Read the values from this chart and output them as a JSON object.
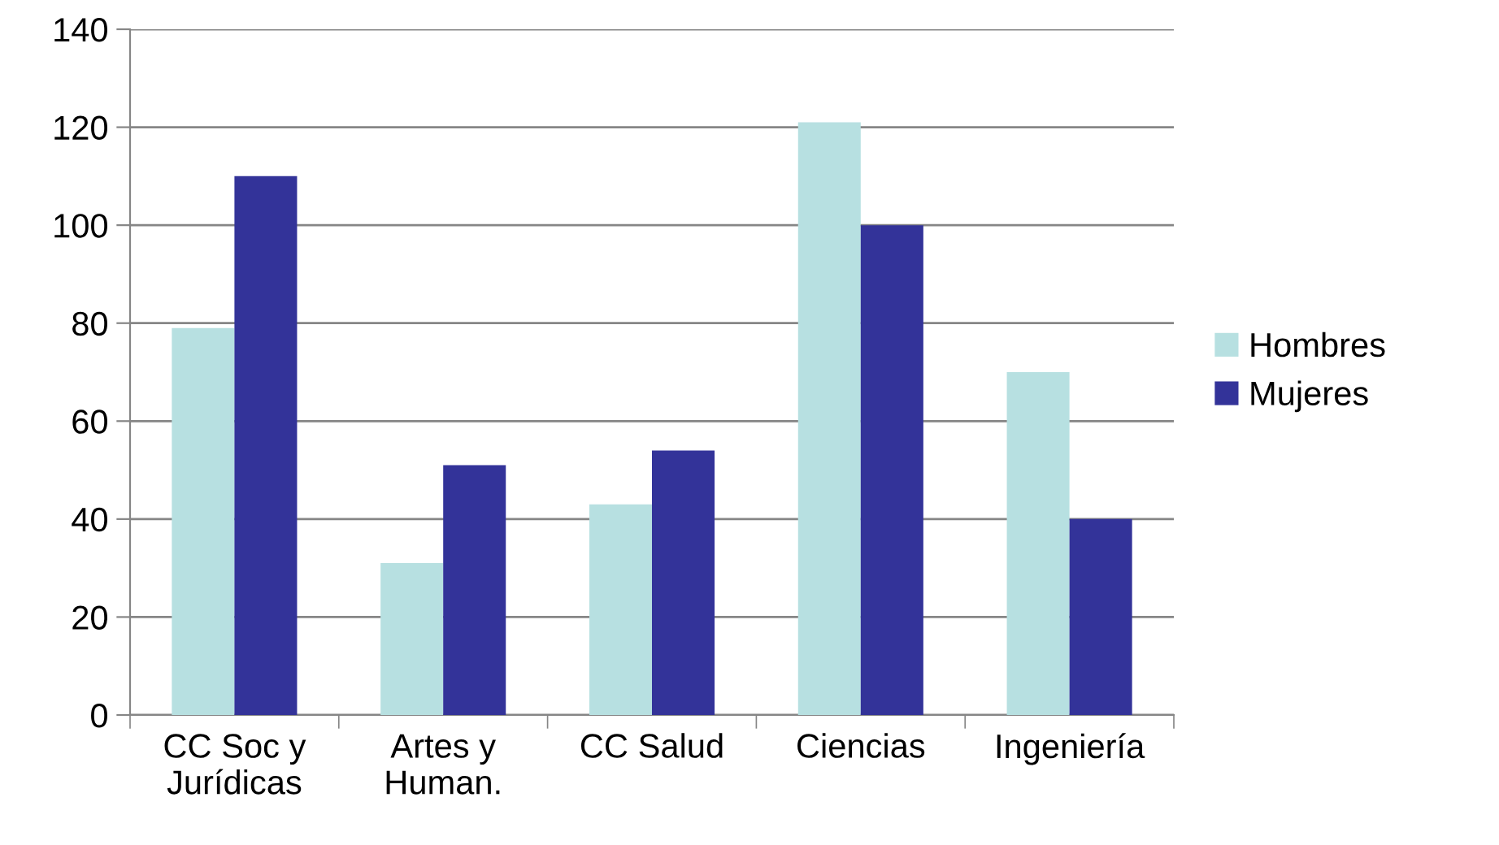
{
  "chart_data": {
    "type": "bar",
    "categories": [
      "CC Soc y\nJurídicas",
      "Artes y\nHuman.",
      "CC Salud",
      "Ciencias",
      "Ingeniería"
    ],
    "series": [
      {
        "name": "Hombres",
        "color": "#b7e0e1",
        "values": [
          79,
          31,
          43,
          121,
          70
        ]
      },
      {
        "name": "Mujeres",
        "color": "#333399",
        "values": [
          110,
          51,
          54,
          100,
          40
        ]
      }
    ],
    "ylim": [
      0,
      140
    ],
    "yticks": [
      0,
      20,
      40,
      60,
      80,
      100,
      120,
      140
    ],
    "grid": "y",
    "legend": "right"
  }
}
